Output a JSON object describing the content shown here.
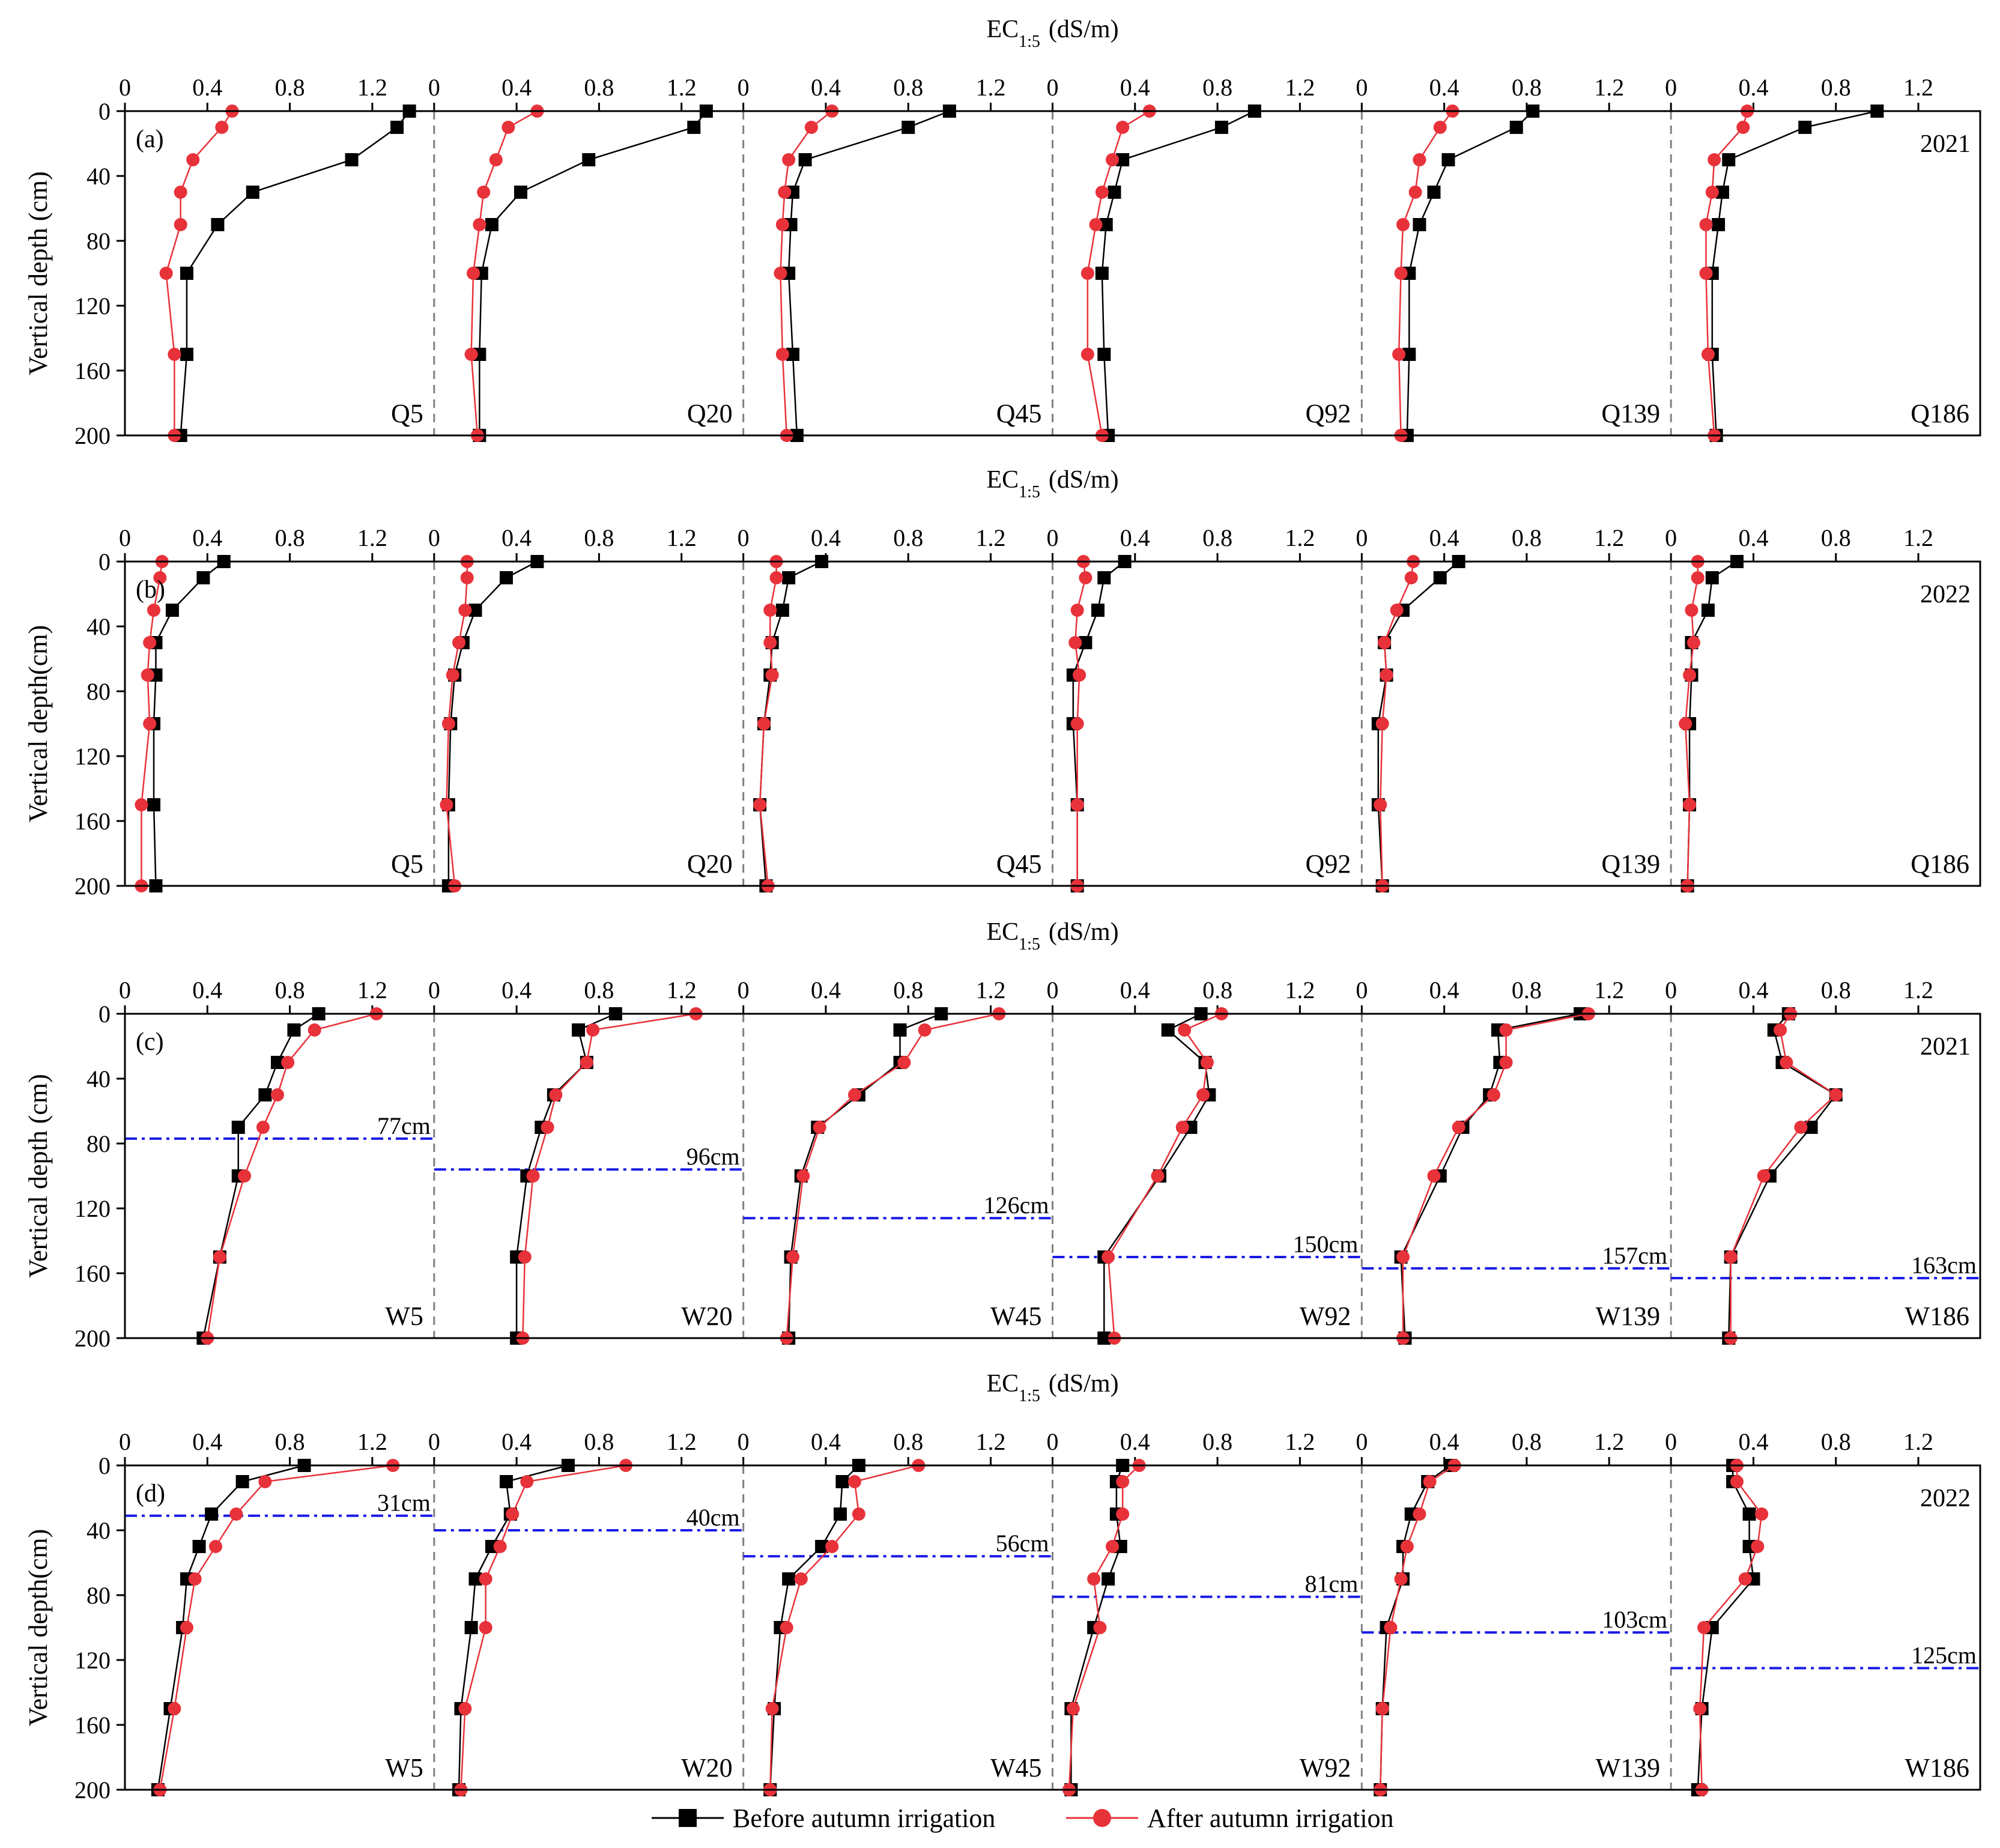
{
  "legend": {
    "before_label": "Before autumn irrigation",
    "after_label": "After autumn irrigation"
  },
  "colors": {
    "before": "#000000",
    "after": "#e8323a",
    "groundwater_line": "#1a1ae6",
    "divider": "#808080"
  },
  "chart_data": {
    "type": "line",
    "x_axis_label": "EC",
    "x_axis_subscript": "1:5",
    "x_axis_unit": "(dS/m)",
    "x_ticks": [
      "0",
      "0.4",
      "0.8",
      "1.2"
    ],
    "x_range": [
      0,
      1.5
    ],
    "y_ticks": [
      "0",
      "40",
      "80",
      "120",
      "160",
      "200"
    ],
    "y_range": [
      0,
      200
    ],
    "depths": [
      0,
      10,
      30,
      50,
      70,
      100,
      150,
      200
    ],
    "panels": [
      {
        "tag": "(a)",
        "year": "2021",
        "ylabel": "Vertical depth (cm)",
        "sites": [
          {
            "name": "Q5",
            "before": [
              1.38,
              1.32,
              1.1,
              0.62,
              0.45,
              0.3,
              0.3,
              0.27
            ],
            "after": [
              0.52,
              0.47,
              0.33,
              0.27,
              0.27,
              0.2,
              0.24,
              0.24
            ]
          },
          {
            "name": "Q20",
            "before": [
              1.32,
              1.26,
              0.75,
              0.42,
              0.28,
              0.23,
              0.22,
              0.22
            ],
            "after": [
              0.5,
              0.36,
              0.3,
              0.24,
              0.22,
              0.19,
              0.18,
              0.21
            ]
          },
          {
            "name": "Q45",
            "before": [
              1.0,
              0.8,
              0.3,
              0.24,
              0.23,
              0.22,
              0.24,
              0.26
            ],
            "after": [
              0.43,
              0.33,
              0.22,
              0.2,
              0.19,
              0.18,
              0.19,
              0.21
            ]
          },
          {
            "name": "Q92",
            "before": [
              0.98,
              0.82,
              0.34,
              0.3,
              0.26,
              0.24,
              0.25,
              0.27
            ],
            "after": [
              0.47,
              0.34,
              0.29,
              0.24,
              0.21,
              0.17,
              0.17,
              0.24
            ]
          },
          {
            "name": "Q139",
            "before": [
              0.83,
              0.75,
              0.42,
              0.35,
              0.28,
              0.23,
              0.23,
              0.22
            ],
            "after": [
              0.44,
              0.38,
              0.28,
              0.26,
              0.2,
              0.19,
              0.18,
              0.19
            ]
          },
          {
            "name": "Q186",
            "before": [
              1.0,
              0.65,
              0.28,
              0.25,
              0.23,
              0.2,
              0.2,
              0.22
            ],
            "after": [
              0.37,
              0.35,
              0.21,
              0.2,
              0.17,
              0.17,
              0.18,
              0.21
            ]
          }
        ]
      },
      {
        "tag": "(b)",
        "year": "2022",
        "ylabel": "Vertical depth(cm)",
        "sites": [
          {
            "name": "Q5",
            "before": [
              0.48,
              0.38,
              0.23,
              0.15,
              0.15,
              0.14,
              0.14,
              0.15
            ],
            "after": [
              0.18,
              0.17,
              0.14,
              0.12,
              0.11,
              0.12,
              0.08,
              0.08
            ]
          },
          {
            "name": "Q20",
            "before": [
              0.5,
              0.35,
              0.2,
              0.14,
              0.1,
              0.08,
              0.07,
              0.07
            ],
            "after": [
              0.16,
              0.16,
              0.15,
              0.12,
              0.09,
              0.07,
              0.06,
              0.1
            ]
          },
          {
            "name": "Q45",
            "before": [
              0.38,
              0.22,
              0.19,
              0.14,
              0.13,
              0.1,
              0.08,
              0.11
            ],
            "after": [
              0.16,
              0.16,
              0.13,
              0.13,
              0.14,
              0.1,
              0.08,
              0.12
            ]
          },
          {
            "name": "Q92",
            "before": [
              0.35,
              0.25,
              0.22,
              0.16,
              0.1,
              0.1,
              0.12,
              0.12
            ],
            "after": [
              0.15,
              0.16,
              0.12,
              0.11,
              0.13,
              0.12,
              0.12,
              0.12
            ]
          },
          {
            "name": "Q139",
            "before": [
              0.47,
              0.38,
              0.2,
              0.11,
              0.12,
              0.08,
              0.08,
              0.1
            ],
            "after": [
              0.25,
              0.24,
              0.17,
              0.11,
              0.12,
              0.1,
              0.09,
              0.1
            ]
          },
          {
            "name": "Q186",
            "before": [
              0.32,
              0.2,
              0.18,
              0.1,
              0.1,
              0.09,
              0.09,
              0.08
            ],
            "after": [
              0.13,
              0.13,
              0.1,
              0.11,
              0.09,
              0.07,
              0.09,
              0.08
            ]
          }
        ]
      },
      {
        "tag": "(c)",
        "year": "2021",
        "ylabel": "Vertical depth (cm)",
        "sites": [
          {
            "name": "W5",
            "gw_depth": 77,
            "gw_label": "77cm",
            "before": [
              0.94,
              0.82,
              0.74,
              0.68,
              0.55,
              0.55,
              0.46,
              0.38
            ],
            "after": [
              1.22,
              0.92,
              0.79,
              0.74,
              0.67,
              0.58,
              0.46,
              0.4
            ]
          },
          {
            "name": "W20",
            "gw_depth": 96,
            "gw_label": "96cm",
            "before": [
              0.88,
              0.7,
              0.74,
              0.58,
              0.52,
              0.45,
              0.4,
              0.4
            ],
            "after": [
              1.27,
              0.77,
              0.74,
              0.59,
              0.55,
              0.48,
              0.44,
              0.43
            ]
          },
          {
            "name": "W45",
            "gw_depth": 126,
            "gw_label": "126cm",
            "before": [
              0.96,
              0.76,
              0.76,
              0.56,
              0.36,
              0.28,
              0.23,
              0.22
            ],
            "after": [
              1.24,
              0.88,
              0.78,
              0.54,
              0.37,
              0.29,
              0.24,
              0.21
            ]
          },
          {
            "name": "W92",
            "gw_depth": 150,
            "gw_label": "150cm",
            "before": [
              0.72,
              0.56,
              0.74,
              0.76,
              0.67,
              0.52,
              0.25,
              0.25
            ],
            "after": [
              0.82,
              0.64,
              0.75,
              0.73,
              0.63,
              0.51,
              0.27,
              0.3
            ]
          },
          {
            "name": "W139",
            "gw_depth": 157,
            "gw_label": "157cm",
            "before": [
              1.06,
              0.66,
              0.67,
              0.62,
              0.49,
              0.38,
              0.19,
              0.21
            ],
            "after": [
              1.1,
              0.7,
              0.7,
              0.64,
              0.47,
              0.35,
              0.2,
              0.2
            ]
          },
          {
            "name": "W186",
            "gw_depth": 163,
            "gw_label": "163cm",
            "before": [
              0.57,
              0.5,
              0.54,
              0.8,
              0.68,
              0.48,
              0.29,
              0.28
            ],
            "after": [
              0.58,
              0.53,
              0.56,
              0.8,
              0.63,
              0.45,
              0.29,
              0.29
            ]
          }
        ]
      },
      {
        "tag": "(d)",
        "year": "2022",
        "ylabel": "Vertical depth(cm)",
        "sites": [
          {
            "name": "W5",
            "gw_depth": 31,
            "gw_label": "31cm",
            "before": [
              0.87,
              0.57,
              0.42,
              0.36,
              0.3,
              0.28,
              0.22,
              0.16
            ],
            "after": [
              1.3,
              0.68,
              0.54,
              0.44,
              0.34,
              0.3,
              0.24,
              0.17
            ]
          },
          {
            "name": "W20",
            "gw_depth": 40,
            "gw_label": "40cm",
            "before": [
              0.65,
              0.35,
              0.37,
              0.28,
              0.2,
              0.18,
              0.13,
              0.12
            ],
            "after": [
              0.93,
              0.45,
              0.38,
              0.32,
              0.25,
              0.25,
              0.15,
              0.13
            ]
          },
          {
            "name": "W45",
            "gw_depth": 56,
            "gw_label": "56cm",
            "before": [
              0.56,
              0.48,
              0.47,
              0.38,
              0.22,
              0.18,
              0.15,
              0.13
            ],
            "after": [
              0.85,
              0.54,
              0.56,
              0.43,
              0.28,
              0.21,
              0.14,
              0.13
            ]
          },
          {
            "name": "W92",
            "gw_depth": 81,
            "gw_label": "81cm",
            "before": [
              0.34,
              0.31,
              0.31,
              0.33,
              0.27,
              0.2,
              0.09,
              0.09
            ],
            "after": [
              0.42,
              0.34,
              0.34,
              0.29,
              0.2,
              0.23,
              0.1,
              0.08
            ]
          },
          {
            "name": "W139",
            "gw_depth": 103,
            "gw_label": "103cm",
            "before": [
              0.43,
              0.32,
              0.24,
              0.2,
              0.2,
              0.12,
              0.1,
              0.09
            ],
            "after": [
              0.45,
              0.33,
              0.28,
              0.22,
              0.19,
              0.14,
              0.1,
              0.09
            ]
          },
          {
            "name": "W186",
            "gw_depth": 125,
            "gw_label": "125cm",
            "before": [
              0.3,
              0.3,
              0.38,
              0.38,
              0.4,
              0.2,
              0.15,
              0.13
            ],
            "after": [
              0.32,
              0.32,
              0.44,
              0.42,
              0.36,
              0.16,
              0.14,
              0.15
            ]
          }
        ]
      }
    ]
  }
}
